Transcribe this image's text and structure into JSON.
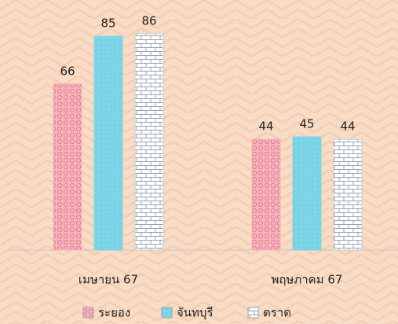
{
  "chart_data": {
    "type": "bar",
    "categories": [
      "เมษายน 67",
      "พฤษภาคม 67"
    ],
    "series": [
      {
        "name": "ระยอง",
        "color": "#f4b3bd",
        "values": [
          66,
          44
        ]
      },
      {
        "name": "จันทบุรี",
        "color": "#7fd5e8",
        "values": [
          85,
          45
        ]
      },
      {
        "name": "ตราด",
        "color": "#ffffff",
        "values": [
          86,
          44
        ]
      }
    ],
    "data_labels": true,
    "legend": "bottom"
  }
}
